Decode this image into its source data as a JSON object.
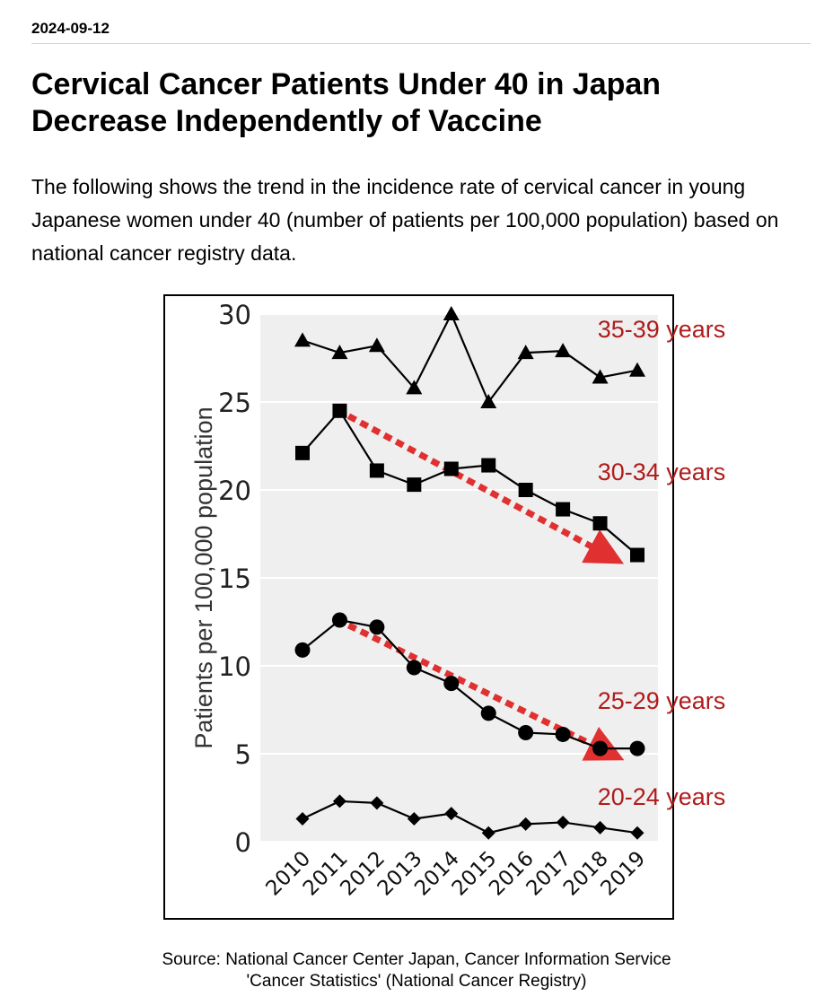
{
  "article": {
    "date": "2024-09-12",
    "title_line1": "Cervical Cancer Patients Under 40 in Japan",
    "title_line2": "Decrease Independently of Vaccine",
    "description": "The following shows the trend in the incidence rate of cervical cancer in young Japanese women under 40 (number of patients per 100,000 population) based on national cancer registry data.",
    "source_line1": "Source: National Cancer Center Japan, Cancer Information Service",
    "source_line2": "'Cancer Statistics' (National Cancer Registry)"
  },
  "chart_data": {
    "type": "line",
    "title": "",
    "xlabel": "",
    "ylabel": "Patients per 100,000 population",
    "x": [
      "2010",
      "2011",
      "2012",
      "2013",
      "2014",
      "2015",
      "2016",
      "2017",
      "2018",
      "2019"
    ],
    "ylim": [
      0,
      30
    ],
    "yticks": [
      "0",
      "5",
      "10",
      "15",
      "20",
      "25",
      "30"
    ],
    "grid": true,
    "series": [
      {
        "name": "35-39 years",
        "marker": "triangle",
        "values": [
          28.5,
          27.8,
          28.2,
          25.8,
          30.0,
          25.0,
          27.8,
          27.9,
          26.4,
          26.8
        ]
      },
      {
        "name": "30-34 years",
        "marker": "square",
        "values": [
          22.1,
          24.5,
          21.1,
          20.3,
          21.2,
          21.4,
          20.0,
          18.9,
          18.1,
          16.3
        ]
      },
      {
        "name": "25-29 years",
        "marker": "circle",
        "values": [
          10.9,
          12.6,
          12.2,
          9.9,
          9.0,
          7.3,
          6.2,
          6.1,
          5.3,
          5.3
        ]
      },
      {
        "name": "20-24 years",
        "marker": "diamond",
        "values": [
          1.3,
          2.3,
          2.2,
          1.3,
          1.6,
          0.5,
          1.0,
          1.1,
          0.8,
          0.5
        ]
      }
    ],
    "trend_arrows": [
      {
        "from": {
          "x": "2011",
          "y": 24.2
        },
        "to": {
          "x": "2018",
          "y": 16.3
        },
        "color": "#e03030"
      },
      {
        "from": {
          "x": "2011",
          "y": 12.3
        },
        "to": {
          "x": "2018",
          "y": 5.1
        },
        "color": "#e03030"
      }
    ],
    "label_color": "#b01c1c",
    "series_color": "#000000",
    "plot_background": "#efefef"
  }
}
